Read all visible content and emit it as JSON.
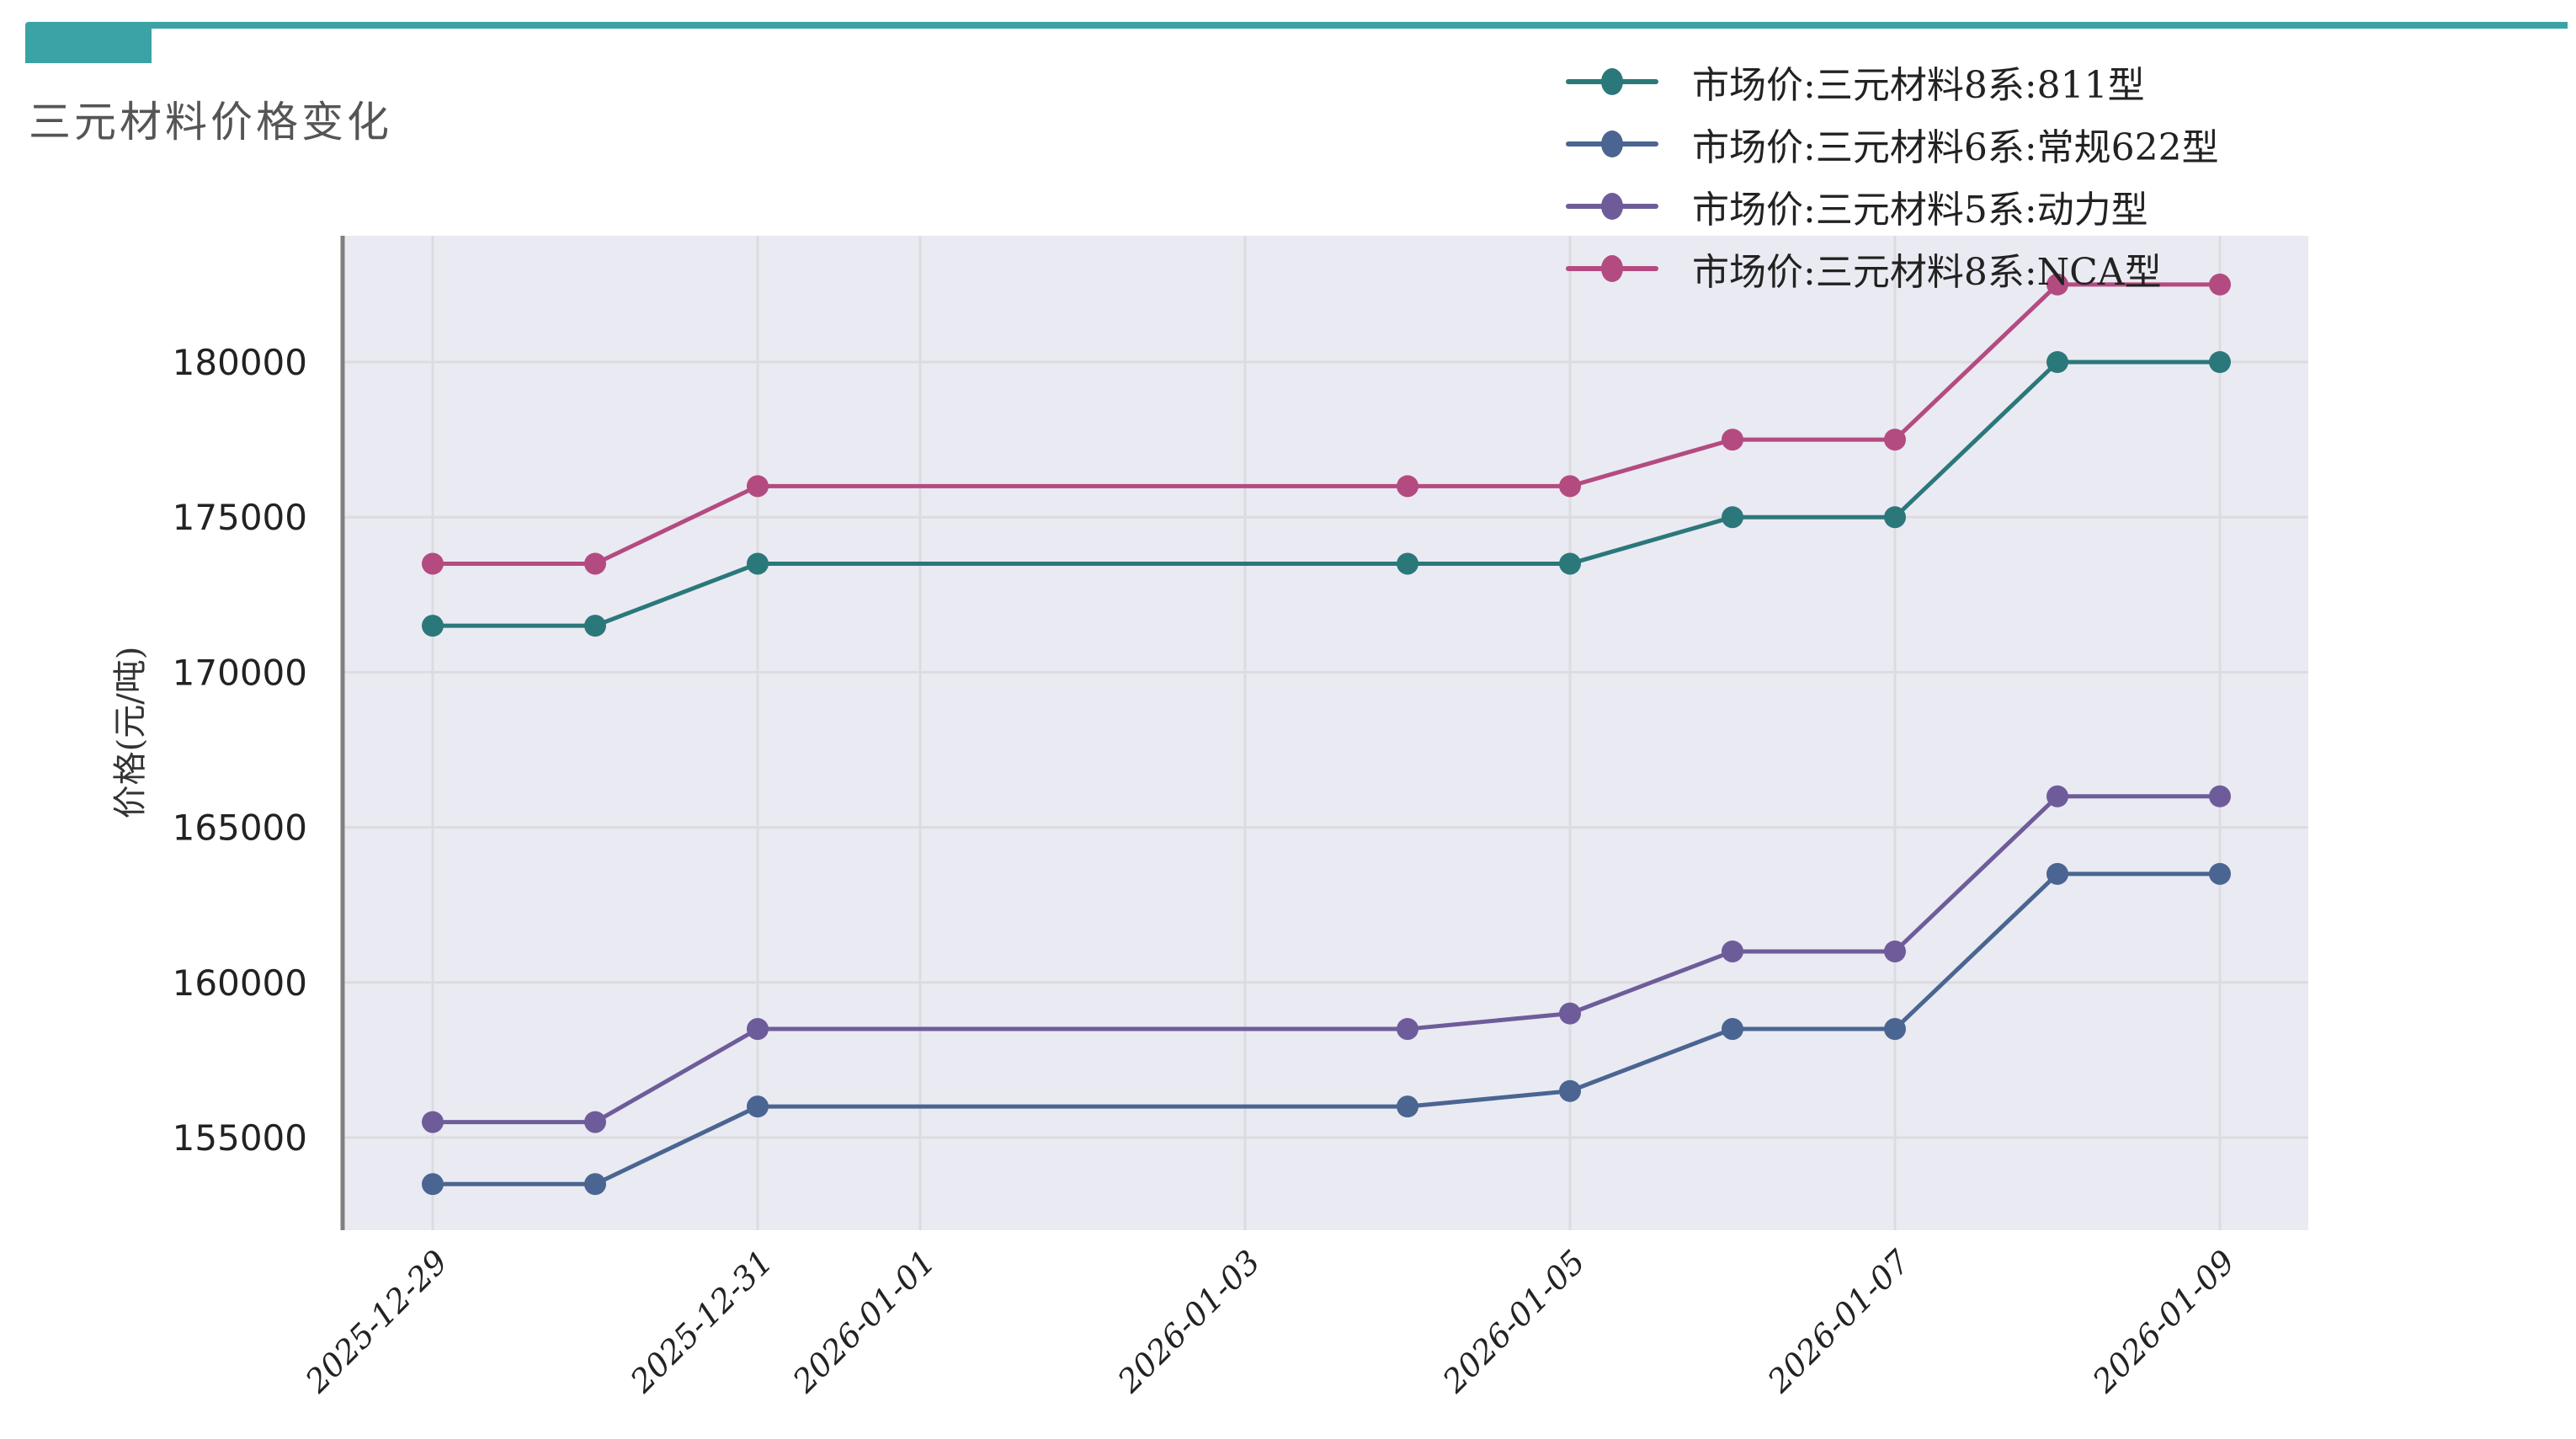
{
  "header": {
    "title": "三元材料价格变化",
    "accent_color": "#3ba3a6"
  },
  "chart_data": {
    "type": "line",
    "title": "三元材料价格变化",
    "xlabel": "",
    "ylabel": "价格(元/吨)",
    "x": [
      "2025-12-29",
      "2025-12-30",
      "2025-12-31",
      "2026-01-04",
      "2026-01-05",
      "2026-01-06",
      "2026-01-07",
      "2026-01-08",
      "2026-01-09"
    ],
    "x_tick_labels": [
      "2025-12-29",
      "2025-12-31",
      "2026-01-01",
      "2026-01-03",
      "2026-01-05",
      "2026-01-07",
      "2026-01-09"
    ],
    "y_tick_labels": [
      "155000",
      "160000",
      "165000",
      "170000",
      "175000",
      "180000"
    ],
    "ylim": [
      152000,
      184000
    ],
    "grid": true,
    "legend_position": "upper right",
    "plot_background": "#eaeaf2",
    "series": [
      {
        "name": "市场价:三元材料8系:811型",
        "color": "#2b787b",
        "values": [
          171500,
          171500,
          173500,
          173500,
          173500,
          175000,
          175000,
          180000,
          180000
        ]
      },
      {
        "name": "市场价:三元材料6系:常规622型",
        "color": "#4a6591",
        "values": [
          153500,
          153500,
          156000,
          156000,
          156500,
          158500,
          158500,
          163500,
          163500
        ]
      },
      {
        "name": "市场价:三元材料5系:动力型",
        "color": "#6e5c9a",
        "values": [
          155500,
          155500,
          158500,
          158500,
          159000,
          161000,
          161000,
          166000,
          166000
        ]
      },
      {
        "name": "市场价:三元材料8系:NCA型",
        "color": "#b44b80",
        "values": [
          173500,
          173500,
          176000,
          176000,
          176000,
          177500,
          177500,
          182500,
          182500
        ]
      }
    ]
  }
}
